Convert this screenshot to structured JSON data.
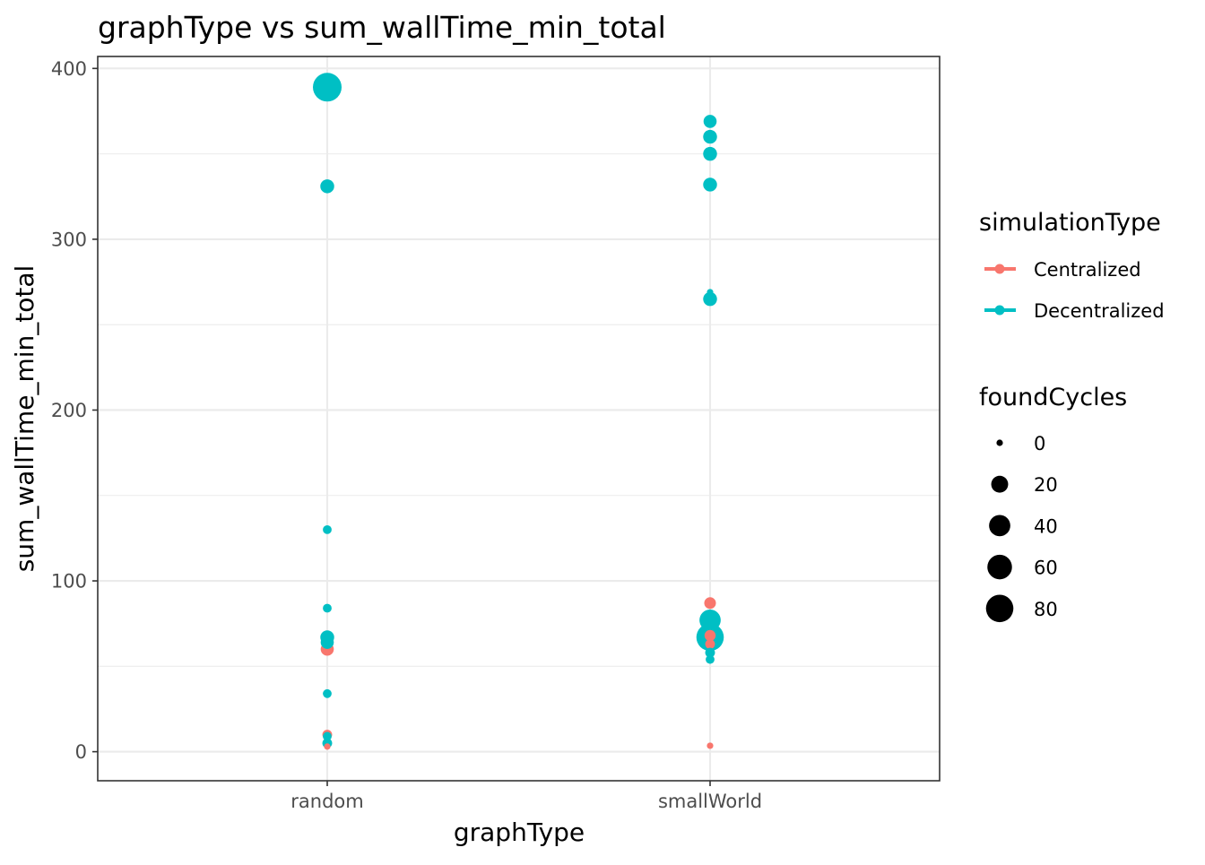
{
  "chart_data": {
    "type": "scatter",
    "title": "graphType  vs  sum_wallTime_min_total",
    "xlabel": "graphType",
    "ylabel": "sum_wallTime_min_total",
    "categories": [
      "random",
      "smallWorld"
    ],
    "y_ticks": [
      0,
      100,
      200,
      300,
      400
    ],
    "ylim": [
      -17,
      407
    ],
    "grid": true,
    "legend_position": "right",
    "color_legend": {
      "title": "simulationType",
      "entries": [
        {
          "label": "Centralized",
          "color": "#F8766D"
        },
        {
          "label": "Decentralized",
          "color": "#00BFC4"
        }
      ]
    },
    "size_legend": {
      "title": "foundCycles",
      "entries": [
        {
          "label": "0",
          "value": 0
        },
        {
          "label": "20",
          "value": 20
        },
        {
          "label": "40",
          "value": 40
        },
        {
          "label": "60",
          "value": 60
        },
        {
          "label": "80",
          "value": 80
        }
      ]
    },
    "series": [
      {
        "name": "Centralized",
        "color": "#F8766D",
        "points": [
          {
            "x": "random",
            "y": 60,
            "size": 8
          },
          {
            "x": "random",
            "y": 10,
            "size": 2
          },
          {
            "x": "random",
            "y": 3,
            "size": 0
          },
          {
            "x": "smallWorld",
            "y": 87,
            "size": 5
          },
          {
            "x": "smallWorld",
            "y": 68,
            "size": 4
          },
          {
            "x": "smallWorld",
            "y": 63,
            "size": 2
          },
          {
            "x": "smallWorld",
            "y": 3.5,
            "size": 0
          }
        ]
      },
      {
        "name": "Decentralized",
        "color": "#00BFC4",
        "points": [
          {
            "x": "random",
            "y": 389,
            "size": 90
          },
          {
            "x": "random",
            "y": 331,
            "size": 10
          },
          {
            "x": "random",
            "y": 130,
            "size": 1
          },
          {
            "x": "random",
            "y": 84,
            "size": 1
          },
          {
            "x": "random",
            "y": 67,
            "size": 10
          },
          {
            "x": "random",
            "y": 64,
            "size": 8
          },
          {
            "x": "random",
            "y": 34,
            "size": 1
          },
          {
            "x": "random",
            "y": 9,
            "size": 1
          },
          {
            "x": "random",
            "y": 5,
            "size": 2
          },
          {
            "x": "smallWorld",
            "y": 369,
            "size": 8
          },
          {
            "x": "smallWorld",
            "y": 360,
            "size": 10
          },
          {
            "x": "smallWorld",
            "y": 350,
            "size": 10
          },
          {
            "x": "smallWorld",
            "y": 332,
            "size": 10
          },
          {
            "x": "smallWorld",
            "y": 269,
            "size": 0
          },
          {
            "x": "smallWorld",
            "y": 265,
            "size": 10
          },
          {
            "x": "smallWorld",
            "y": 77,
            "size": 40
          },
          {
            "x": "smallWorld",
            "y": 67,
            "size": 80
          },
          {
            "x": "smallWorld",
            "y": 58,
            "size": 2
          },
          {
            "x": "smallWorld",
            "y": 54,
            "size": 1
          }
        ]
      }
    ]
  }
}
